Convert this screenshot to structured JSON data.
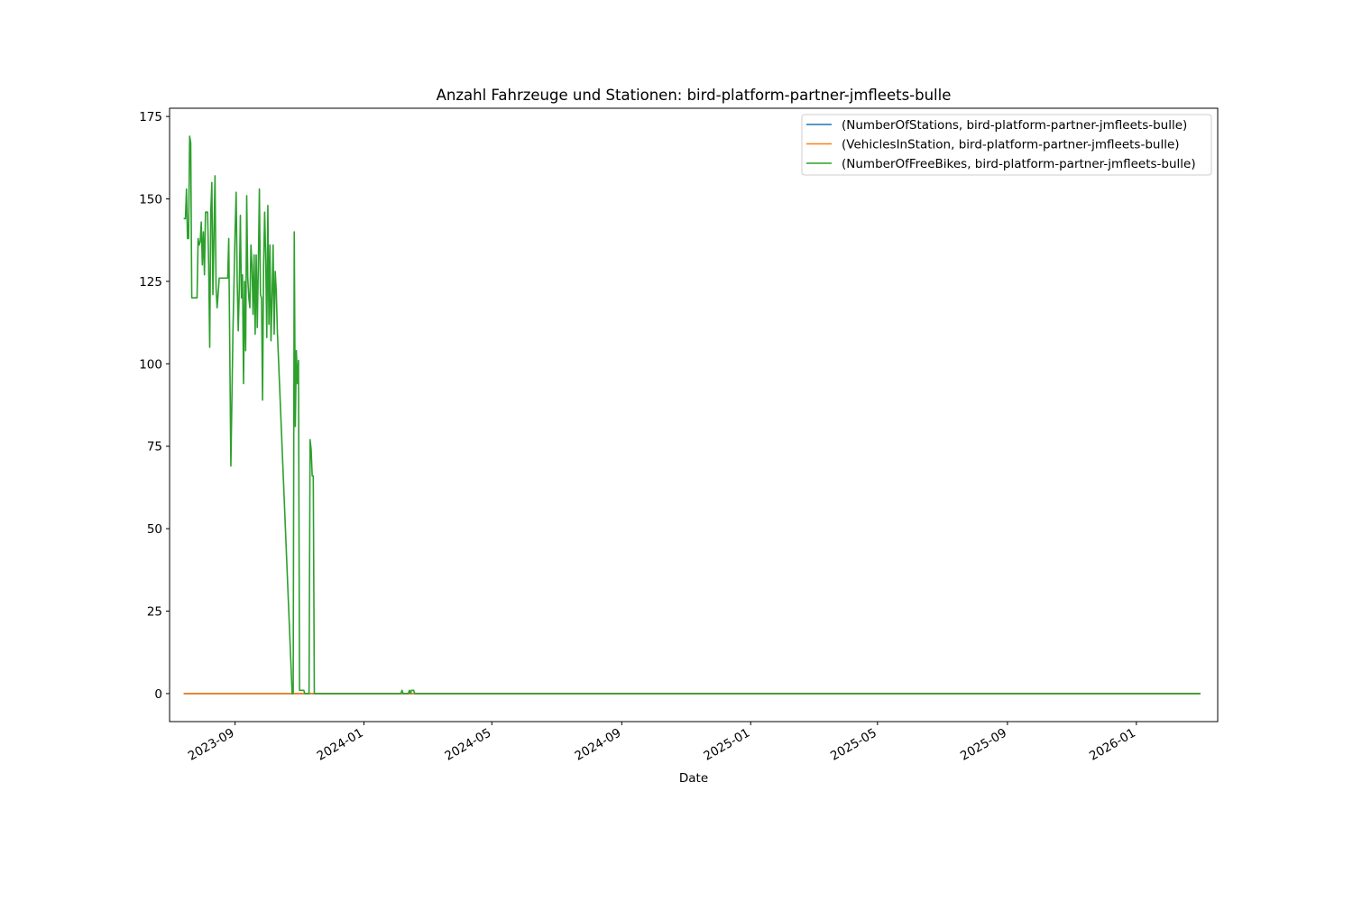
{
  "chart_data": {
    "type": "line",
    "title": "Anzahl Fahrzeuge und Stationen: bird-platform-partner-jmfleets-bulle",
    "xlabel": "Date",
    "ylabel": "",
    "x_axis_type": "date",
    "xlim": [
      "2023-07-01",
      "2026-03-19"
    ],
    "ylim": [
      -8.5,
      177.5
    ],
    "x_ticks": [
      "2023-09",
      "2024-01",
      "2024-05",
      "2024-09",
      "2025-01",
      "2025-05",
      "2025-09",
      "2026-01"
    ],
    "y_ticks": [
      0,
      25,
      50,
      75,
      100,
      125,
      150,
      175
    ],
    "grid": false,
    "legend_position": "top-right",
    "series": [
      {
        "name": "(NumberOfStations, bird-platform-partner-jmfleets-bulle)",
        "color": "#1f77b4",
        "points": [
          [
            "2023-07-15",
            0
          ],
          [
            "2026-03-02",
            0
          ]
        ]
      },
      {
        "name": "(VehiclesInStation, bird-platform-partner-jmfleets-bulle)",
        "color": "#ff7f0e",
        "points": [
          [
            "2023-07-15",
            0
          ],
          [
            "2026-03-02",
            0
          ]
        ]
      },
      {
        "name": "(NumberOfFreeBikes, bird-platform-partner-jmfleets-bulle)",
        "color": "#2ca02c",
        "points": [
          [
            "2023-07-15",
            144
          ],
          [
            "2023-07-16",
            144
          ],
          [
            "2023-07-17",
            153
          ],
          [
            "2023-07-18",
            138
          ],
          [
            "2023-07-19",
            138
          ],
          [
            "2023-07-20",
            169
          ],
          [
            "2023-07-21",
            167
          ],
          [
            "2023-07-22",
            120
          ],
          [
            "2023-07-25",
            120
          ],
          [
            "2023-07-27",
            120
          ],
          [
            "2023-07-28",
            138
          ],
          [
            "2023-07-29",
            136
          ],
          [
            "2023-07-30",
            137
          ],
          [
            "2023-07-31",
            143
          ],
          [
            "2023-08-01",
            130
          ],
          [
            "2023-08-02",
            140
          ],
          [
            "2023-08-03",
            127
          ],
          [
            "2023-08-04",
            146
          ],
          [
            "2023-08-06",
            146
          ],
          [
            "2023-08-07",
            130
          ],
          [
            "2023-08-08",
            105
          ],
          [
            "2023-08-09",
            146
          ],
          [
            "2023-08-10",
            155
          ],
          [
            "2023-08-11",
            121
          ],
          [
            "2023-08-12",
            139
          ],
          [
            "2023-08-13",
            157
          ],
          [
            "2023-08-14",
            123
          ],
          [
            "2023-08-15",
            117
          ],
          [
            "2023-08-17",
            126
          ],
          [
            "2023-08-20",
            126
          ],
          [
            "2023-08-23",
            126
          ],
          [
            "2023-08-25",
            126
          ],
          [
            "2023-08-26",
            138
          ],
          [
            "2023-08-28",
            69
          ],
          [
            "2023-08-30",
            110
          ],
          [
            "2023-09-01",
            140
          ],
          [
            "2023-09-02",
            152
          ],
          [
            "2023-09-03",
            125
          ],
          [
            "2023-09-04",
            110
          ],
          [
            "2023-09-05",
            123
          ],
          [
            "2023-09-06",
            145
          ],
          [
            "2023-09-07",
            120
          ],
          [
            "2023-09-08",
            127
          ],
          [
            "2023-09-09",
            94
          ],
          [
            "2023-09-10",
            125
          ],
          [
            "2023-09-11",
            104
          ],
          [
            "2023-09-12",
            151
          ],
          [
            "2023-09-13",
            126
          ],
          [
            "2023-09-14",
            120
          ],
          [
            "2023-09-15",
            117
          ],
          [
            "2023-09-16",
            136
          ],
          [
            "2023-09-17",
            130
          ],
          [
            "2023-09-18",
            115
          ],
          [
            "2023-09-19",
            133
          ],
          [
            "2023-09-20",
            109
          ],
          [
            "2023-09-21",
            133
          ],
          [
            "2023-09-22",
            111
          ],
          [
            "2023-09-23",
            130
          ],
          [
            "2023-09-24",
            153
          ],
          [
            "2023-09-25",
            121
          ],
          [
            "2023-09-26",
            120
          ],
          [
            "2023-09-27",
            89
          ],
          [
            "2023-09-28",
            130
          ],
          [
            "2023-09-29",
            146
          ],
          [
            "2023-09-30",
            132
          ],
          [
            "2023-10-01",
            108
          ],
          [
            "2023-10-02",
            148
          ],
          [
            "2023-10-03",
            112
          ],
          [
            "2023-10-04",
            136
          ],
          [
            "2023-10-05",
            107
          ],
          [
            "2023-10-06",
            120
          ],
          [
            "2023-10-07",
            136
          ],
          [
            "2023-10-08",
            109
          ],
          [
            "2023-10-09",
            128
          ],
          [
            "2023-10-10",
            122
          ],
          [
            "2023-10-11",
            110
          ],
          [
            "2023-10-25",
            0
          ],
          [
            "2023-10-26",
            0
          ],
          [
            "2023-10-27",
            140
          ],
          [
            "2023-10-28",
            81
          ],
          [
            "2023-10-29",
            104
          ],
          [
            "2023-10-30",
            94
          ],
          [
            "2023-10-31",
            101
          ],
          [
            "2023-11-01",
            1
          ],
          [
            "2023-11-05",
            1
          ],
          [
            "2023-11-06",
            0
          ],
          [
            "2023-11-09",
            0
          ],
          [
            "2023-11-10",
            0
          ],
          [
            "2023-11-11",
            77
          ],
          [
            "2023-11-12",
            74
          ],
          [
            "2023-11-13",
            66
          ],
          [
            "2023-11-14",
            66
          ],
          [
            "2023-11-15",
            0
          ],
          [
            "2023-11-20",
            0
          ],
          [
            "2024-02-05",
            0
          ],
          [
            "2024-02-06",
            1
          ],
          [
            "2024-02-07",
            0
          ],
          [
            "2024-02-08",
            0
          ],
          [
            "2024-02-12",
            0
          ],
          [
            "2024-02-13",
            1
          ],
          [
            "2024-02-14",
            0
          ],
          [
            "2024-02-15",
            1
          ],
          [
            "2024-02-17",
            1
          ],
          [
            "2024-02-18",
            0
          ],
          [
            "2026-03-02",
            0
          ]
        ]
      }
    ]
  }
}
